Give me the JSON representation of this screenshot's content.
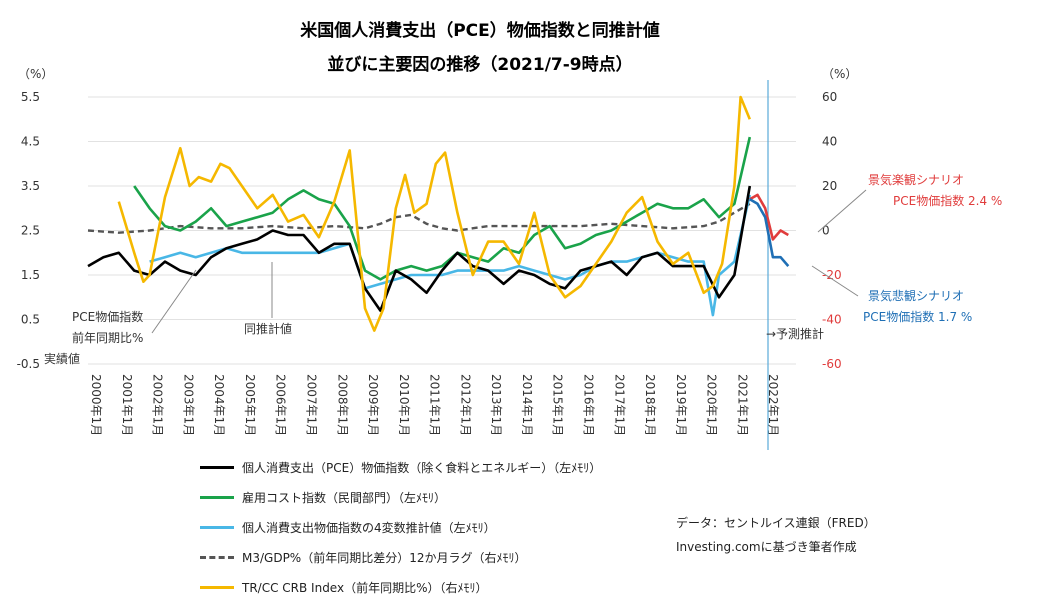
{
  "title_line1": "米国個人消費支出（PCE）物価指数と同推計値",
  "title_line2": "並びに主要因の推移（2021/7-9時点）",
  "left_unit": "（%）",
  "right_unit": "（%）",
  "chart_data": {
    "type": "line",
    "left_axis": {
      "ticks": [
        5.5,
        4.5,
        3.5,
        2.5,
        1.5,
        0.5,
        -0.5
      ],
      "range": [
        -0.5,
        5.5
      ]
    },
    "right_axis": {
      "ticks": [
        60,
        40,
        20,
        0,
        -20,
        -40,
        -60
      ],
      "range": [
        -60,
        60
      ]
    },
    "x_ticks": [
      "2000年1月",
      "2001年1月",
      "2002年1月",
      "2003年1月",
      "2004年1月",
      "2005年1月",
      "2006年1月",
      "2007年1月",
      "2008年1月",
      "2009年1月",
      "2010年1月",
      "2011年1月",
      "2012年1月",
      "2013年1月",
      "2014年1月",
      "2015年1月",
      "2016年1月",
      "2017年1月",
      "2018年1月",
      "2019年1月",
      "2020年1月",
      "2021年1月",
      "2022年1月"
    ],
    "series": [
      {
        "name": "個人消費支出（PCE）物価指数（除く食料とエネルギー）（左ﾒﾓﾘ）",
        "axis": "left",
        "color": "#000000",
        "dash": false,
        "x": [
          2000.0,
          2000.5,
          2001.0,
          2001.5,
          2002.0,
          2002.5,
          2003.0,
          2003.5,
          2004.0,
          2004.5,
          2005.0,
          2005.5,
          2006.0,
          2006.5,
          2007.0,
          2007.5,
          2008.0,
          2008.5,
          2009.0,
          2009.5,
          2010.0,
          2010.5,
          2011.0,
          2011.5,
          2012.0,
          2012.5,
          2013.0,
          2013.5,
          2014.0,
          2014.5,
          2015.0,
          2015.5,
          2016.0,
          2016.5,
          2017.0,
          2017.5,
          2018.0,
          2018.5,
          2019.0,
          2019.5,
          2020.0,
          2020.5,
          2021.0,
          2021.5
        ],
        "y": [
          1.7,
          1.9,
          2.0,
          1.6,
          1.5,
          1.8,
          1.6,
          1.5,
          1.9,
          2.1,
          2.2,
          2.3,
          2.5,
          2.4,
          2.4,
          2.0,
          2.2,
          2.2,
          1.2,
          0.7,
          1.6,
          1.4,
          1.1,
          1.6,
          2.0,
          1.7,
          1.6,
          1.3,
          1.6,
          1.5,
          1.3,
          1.2,
          1.6,
          1.7,
          1.8,
          1.5,
          1.9,
          2.0,
          1.7,
          1.7,
          1.7,
          1.0,
          1.5,
          3.5
        ]
      },
      {
        "name": "雇用コスト指数（民間部門）（左ﾒﾓﾘ）",
        "axis": "left",
        "color": "#1aa34a",
        "dash": false,
        "x": [
          2001.5,
          2002.0,
          2002.5,
          2003.0,
          2003.5,
          2004.0,
          2004.5,
          2005.0,
          2005.5,
          2006.0,
          2006.5,
          2007.0,
          2007.5,
          2008.0,
          2008.5,
          2009.0,
          2009.5,
          2010.0,
          2010.5,
          2011.0,
          2011.5,
          2012.0,
          2012.5,
          2013.0,
          2013.5,
          2014.0,
          2014.5,
          2015.0,
          2015.5,
          2016.0,
          2016.5,
          2017.0,
          2017.5,
          2018.0,
          2018.5,
          2019.0,
          2019.5,
          2020.0,
          2020.5,
          2021.0,
          2021.5
        ],
        "y": [
          3.5,
          3.0,
          2.6,
          2.5,
          2.7,
          3.0,
          2.6,
          2.7,
          2.8,
          2.9,
          3.2,
          3.4,
          3.2,
          3.1,
          2.6,
          1.6,
          1.4,
          1.6,
          1.7,
          1.6,
          1.7,
          2.0,
          1.9,
          1.8,
          2.1,
          2.0,
          2.4,
          2.6,
          2.1,
          2.2,
          2.4,
          2.5,
          2.7,
          2.9,
          3.1,
          3.0,
          3.0,
          3.2,
          2.8,
          3.1,
          4.6
        ]
      },
      {
        "name": "個人消費支出物価指数の4変数推計値（左ﾒﾓﾘ）",
        "axis": "left",
        "color": "#49b7e6",
        "dash": false,
        "x": [
          2002.0,
          2002.5,
          2003.0,
          2003.5,
          2004.0,
          2004.5,
          2005.0,
          2005.5,
          2006.0,
          2006.5,
          2007.0,
          2007.5,
          2008.0,
          2008.5,
          2009.0,
          2009.5,
          2010.0,
          2010.5,
          2011.0,
          2011.5,
          2012.0,
          2012.5,
          2013.0,
          2013.5,
          2014.0,
          2014.5,
          2015.0,
          2015.5,
          2016.0,
          2016.5,
          2017.0,
          2017.5,
          2018.0,
          2018.5,
          2019.0,
          2019.5,
          2020.0,
          2020.3,
          2020.5,
          2021.0,
          2021.5
        ],
        "y": [
          1.8,
          1.9,
          2.0,
          1.9,
          2.0,
          2.1,
          2.0,
          2.0,
          2.0,
          2.0,
          2.0,
          2.0,
          2.1,
          2.2,
          1.2,
          1.3,
          1.4,
          1.5,
          1.5,
          1.5,
          1.6,
          1.6,
          1.6,
          1.6,
          1.7,
          1.6,
          1.5,
          1.4,
          1.5,
          1.7,
          1.8,
          1.8,
          1.9,
          2.0,
          1.9,
          1.8,
          1.8,
          0.6,
          1.5,
          1.8,
          3.3
        ]
      },
      {
        "name": "景気楽観シナリオ",
        "axis": "left",
        "color": "#e03c3c",
        "dash": false,
        "x": [
          2021.5,
          2021.75,
          2022.0,
          2022.25,
          2022.5,
          2022.75
        ],
        "y": [
          3.2,
          3.3,
          3.0,
          2.3,
          2.5,
          2.4
        ]
      },
      {
        "name": "景気悲観シナリオ",
        "axis": "left",
        "color": "#1f6fb5",
        "dash": false,
        "x": [
          2021.5,
          2021.75,
          2022.0,
          2022.25,
          2022.5,
          2022.75
        ],
        "y": [
          3.2,
          3.1,
          2.8,
          1.9,
          1.9,
          1.7
        ]
      },
      {
        "name": "M3/GDP%（前年同期比差分）12か月ラグ（右ﾒﾓﾘ）",
        "axis": "right",
        "color": "#555555",
        "dash": true,
        "x": [
          2000.0,
          2001.0,
          2002.0,
          2003.0,
          2004.0,
          2005.0,
          2006.0,
          2007.0,
          2008.0,
          2009.0,
          2009.5,
          2010.0,
          2010.5,
          2011.0,
          2011.5,
          2012.0,
          2013.0,
          2014.0,
          2015.0,
          2016.0,
          2017.0,
          2018.0,
          2019.0,
          2020.0,
          2020.5,
          2021.0,
          2021.5
        ],
        "y": [
          0,
          -1,
          0,
          2,
          1,
          1,
          2,
          1,
          2,
          1,
          3,
          6,
          7,
          3,
          1,
          0,
          2,
          2,
          2,
          2,
          3,
          2,
          1,
          2,
          4,
          8,
          12
        ]
      },
      {
        "name": "TR/CC CRB Index（前年同期比%）（右ﾒﾓﾘ）",
        "axis": "right",
        "color": "#f5b800",
        "dash": false,
        "x": [
          2001.0,
          2001.5,
          2001.8,
          2002.0,
          2002.5,
          2003.0,
          2003.3,
          2003.6,
          2004.0,
          2004.3,
          2004.6,
          2005.0,
          2005.5,
          2006.0,
          2006.5,
          2007.0,
          2007.5,
          2008.0,
          2008.5,
          2009.0,
          2009.3,
          2009.6,
          2010.0,
          2010.3,
          2010.6,
          2011.0,
          2011.3,
          2011.6,
          2012.0,
          2012.5,
          2013.0,
          2013.5,
          2014.0,
          2014.5,
          2015.0,
          2015.5,
          2016.0,
          2016.5,
          2017.0,
          2017.5,
          2018.0,
          2018.5,
          2019.0,
          2019.5,
          2020.0,
          2020.3,
          2020.6,
          2021.0,
          2021.2,
          2021.5
        ],
        "y": [
          13,
          -10,
          -23,
          -20,
          15,
          37,
          20,
          24,
          22,
          30,
          28,
          20,
          10,
          16,
          4,
          7,
          -3,
          13,
          36,
          -35,
          -45,
          -35,
          10,
          25,
          8,
          12,
          30,
          35,
          8,
          -20,
          -5,
          -5,
          -15,
          8,
          -20,
          -30,
          -25,
          -15,
          -5,
          8,
          15,
          -5,
          -15,
          -10,
          -28,
          -25,
          -15,
          20,
          60,
          50
        ]
      }
    ]
  },
  "annotations": {
    "actual_label_1": "PCE物価指数",
    "actual_label_2": "前年同期比%",
    "actual_label_3": "実績値",
    "estimate_label": "同推計値",
    "forecast_label": "→予測推計",
    "optimistic_title": "景気楽観シナリオ",
    "optimistic_value": "PCE物価指数 2.4 %",
    "pessimistic_title": "景気悲観シナリオ",
    "pessimistic_value": "PCE物価指数 1.7 %"
  },
  "legend": [
    {
      "label": "個人消費支出（PCE）物価指数（除く食料とエネルギー）（左ﾒﾓﾘ）",
      "color": "#000000",
      "style": "solid"
    },
    {
      "label": "雇用コスト指数（民間部門）（左ﾒﾓﾘ）",
      "color": "#1aa34a",
      "style": "solid"
    },
    {
      "label": "個人消費支出物価指数の4変数推計値（左ﾒﾓﾘ）",
      "color": "#49b7e6",
      "style": "solid"
    },
    {
      "label": "M3/GDP%（前年同期比差分）12か月ラグ（右ﾒﾓﾘ）",
      "color": "#555555",
      "style": "dashed"
    },
    {
      "label": "TR/CC CRB Index（前年同期比%）（右ﾒﾓﾘ）",
      "color": "#f5b800",
      "style": "solid"
    }
  ],
  "source_note_1": "データ：セントルイス連銀（FRED）",
  "source_note_2": "Investing.comに基づき筆者作成"
}
